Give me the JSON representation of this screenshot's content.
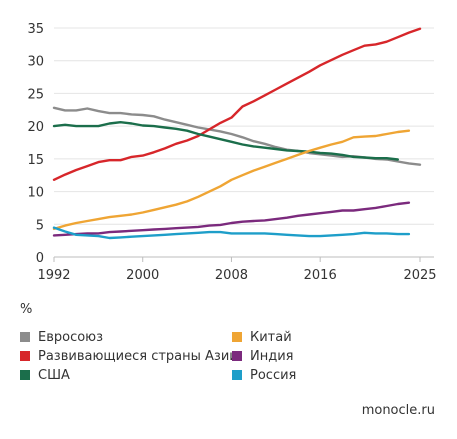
{
  "chart_data": {
    "type": "line",
    "unit_label": "%",
    "x": [
      1992,
      1993,
      1994,
      1995,
      1996,
      1997,
      1998,
      1999,
      2000,
      2001,
      2002,
      2003,
      2004,
      2005,
      2006,
      2007,
      2008,
      2009,
      2010,
      2011,
      2012,
      2013,
      2014,
      2015,
      2016,
      2017,
      2018,
      2019,
      2020,
      2021,
      2022,
      2023,
      2024,
      2025
    ],
    "xlim": [
      1992,
      2025
    ],
    "ylim": [
      0,
      35
    ],
    "xticks": [
      1992,
      2000,
      2008,
      2016,
      2025
    ],
    "yticks": [
      0,
      5,
      10,
      15,
      20,
      25,
      30,
      35
    ],
    "grid": "horizontal",
    "series": [
      {
        "name": "Евросоюз",
        "color": "#8c8c8c",
        "values": [
          22.8,
          22.4,
          22.4,
          22.7,
          22.3,
          22.0,
          22.0,
          21.8,
          21.7,
          21.5,
          21.0,
          20.6,
          20.2,
          19.8,
          19.5,
          19.2,
          18.8,
          18.3,
          17.7,
          17.3,
          16.8,
          16.4,
          16.2,
          15.9,
          15.7,
          15.5,
          15.3,
          15.4,
          15.2,
          15.0,
          14.9,
          14.6,
          14.3,
          14.1
        ]
      },
      {
        "name": "Развивающиеся страны Азии",
        "color": "#d7262a",
        "values": [
          11.8,
          12.6,
          13.3,
          13.9,
          14.5,
          14.8,
          14.8,
          15.3,
          15.5,
          16.0,
          16.6,
          17.3,
          17.8,
          18.5,
          19.5,
          20.5,
          21.3,
          23.0,
          23.8,
          24.7,
          25.6,
          26.5,
          27.4,
          28.3,
          29.3,
          30.1,
          30.9,
          31.6,
          32.3,
          32.5,
          32.9,
          33.6,
          34.3,
          34.9
        ]
      },
      {
        "name": "США",
        "color": "#1b6e4b",
        "values": [
          20.0,
          20.2,
          20.0,
          20.0,
          20.0,
          20.4,
          20.6,
          20.4,
          20.1,
          20.0,
          19.8,
          19.6,
          19.3,
          18.8,
          18.4,
          18.0,
          17.6,
          17.2,
          16.9,
          16.7,
          16.5,
          16.3,
          16.2,
          16.1,
          15.9,
          15.8,
          15.6,
          15.3,
          15.2,
          15.1,
          15.1,
          14.9,
          null,
          null
        ]
      },
      {
        "name": "Китай",
        "color": "#efa534",
        "values": [
          4.3,
          4.8,
          5.2,
          5.5,
          5.8,
          6.1,
          6.3,
          6.5,
          6.8,
          7.2,
          7.6,
          8.0,
          8.5,
          9.2,
          10.0,
          10.8,
          11.8,
          12.5,
          13.2,
          13.8,
          14.4,
          15.0,
          15.6,
          16.2,
          16.7,
          17.2,
          17.6,
          18.3,
          18.4,
          18.5,
          18.8,
          19.1,
          19.3,
          null
        ]
      },
      {
        "name": "Индия",
        "color": "#7b2a7d",
        "values": [
          3.3,
          3.4,
          3.5,
          3.6,
          3.6,
          3.8,
          3.9,
          4.0,
          4.1,
          4.2,
          4.3,
          4.4,
          4.5,
          4.6,
          4.8,
          4.9,
          5.2,
          5.4,
          5.5,
          5.6,
          5.8,
          6.0,
          6.3,
          6.5,
          6.7,
          6.9,
          7.1,
          7.1,
          7.3,
          7.5,
          7.8,
          8.1,
          8.3,
          null
        ]
      },
      {
        "name": "Россия",
        "color": "#1e9ec9",
        "values": [
          4.5,
          3.9,
          3.4,
          3.3,
          3.2,
          2.9,
          3.0,
          3.1,
          3.2,
          3.3,
          3.4,
          3.5,
          3.6,
          3.7,
          3.8,
          3.8,
          3.6,
          3.6,
          3.6,
          3.6,
          3.5,
          3.4,
          3.3,
          3.2,
          3.2,
          3.3,
          3.4,
          3.5,
          3.7,
          3.6,
          3.6,
          3.5,
          3.5,
          null
        ]
      }
    ]
  },
  "legend_layout": [
    {
      "series_index": 0,
      "column": 0,
      "row": 0
    },
    {
      "series_index": 1,
      "column": 0,
      "row": 1
    },
    {
      "series_index": 2,
      "column": 0,
      "row": 2
    },
    {
      "series_index": 3,
      "column": 1,
      "row": 0
    },
    {
      "series_index": 4,
      "column": 1,
      "row": 1
    },
    {
      "series_index": 5,
      "column": 1,
      "row": 2
    }
  ],
  "source": "monocle.ru"
}
